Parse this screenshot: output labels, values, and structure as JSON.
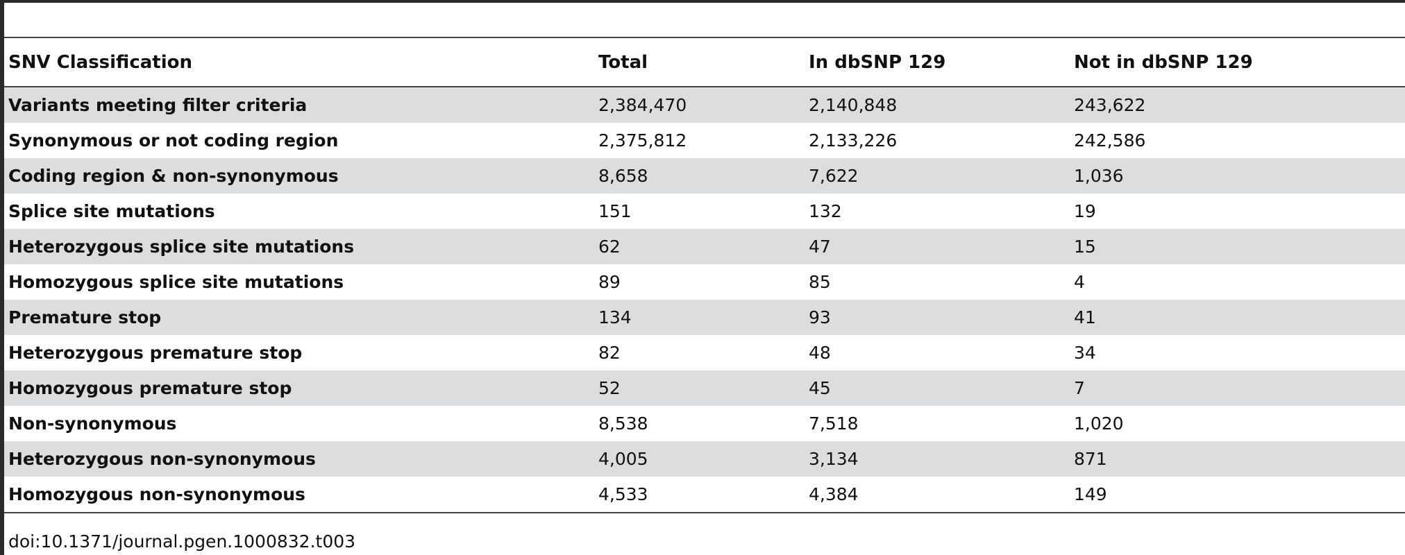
{
  "table": {
    "headers": [
      "SNV Classification",
      "Total",
      "In dbSNP 129",
      "Not in dbSNP 129"
    ],
    "rows": [
      [
        "Variants meeting filter criteria",
        "2,384,470",
        "2,140,848",
        "243,622"
      ],
      [
        "Synonymous or not coding region",
        "2,375,812",
        "2,133,226",
        "242,586"
      ],
      [
        "Coding region & non-synonymous",
        "8,658",
        "7,622",
        "1,036"
      ],
      [
        "Splice site mutations",
        "151",
        "132",
        "19"
      ],
      [
        "Heterozygous splice site mutations",
        "62",
        "47",
        "15"
      ],
      [
        "Homozygous splice site mutations",
        "89",
        "85",
        "4"
      ],
      [
        "Premature stop",
        "134",
        "93",
        "41"
      ],
      [
        "Heterozygous premature stop",
        "82",
        "48",
        "34"
      ],
      [
        "Homozygous premature stop",
        "52",
        "45",
        "7"
      ],
      [
        "Non-synonymous",
        "8,538",
        "7,518",
        "1,020"
      ],
      [
        "Heterozygous non-synonymous",
        "4,005",
        "3,134",
        "871"
      ],
      [
        "Homozygous non-synonymous",
        "4,533",
        "4,384",
        "149"
      ]
    ]
  },
  "footer": {
    "doi": "doi:10.1371/journal.pgen.1000832.t003"
  },
  "colors": {
    "stripe": "#dcdddf",
    "rule": "#444444",
    "text": "#111111"
  }
}
